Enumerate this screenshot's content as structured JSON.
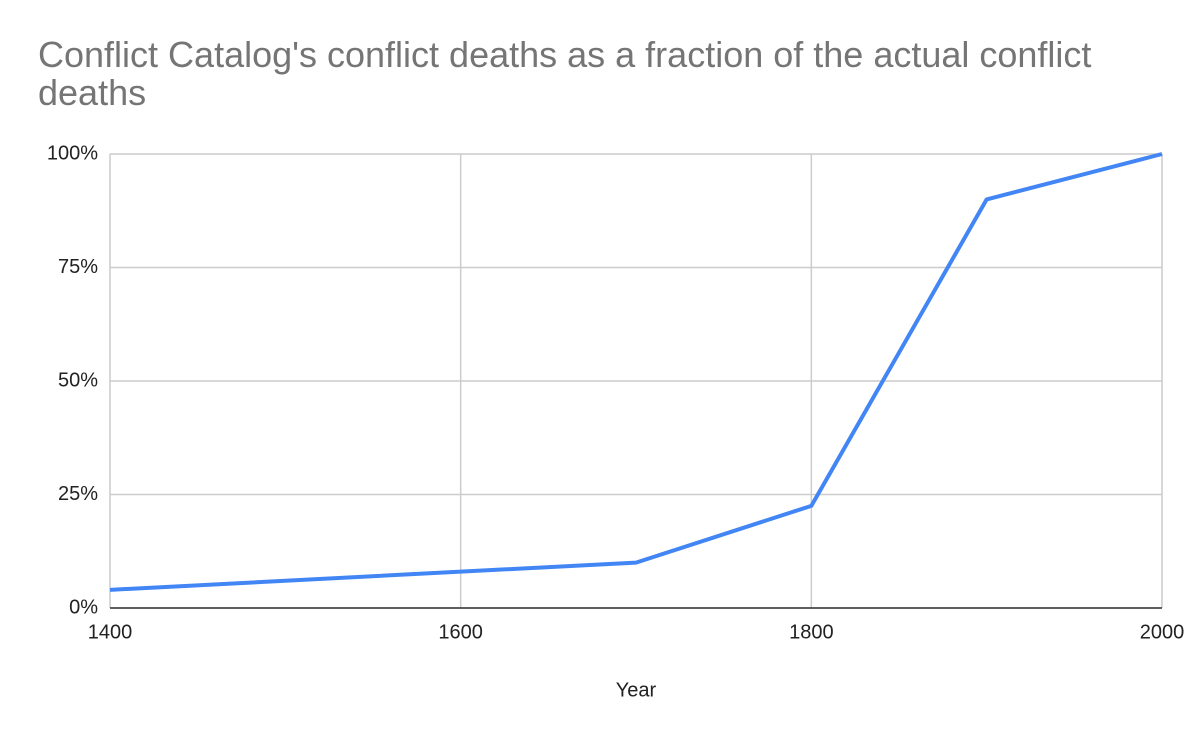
{
  "chart_data": {
    "type": "line",
    "title": "Conflict Catalog's conflict deaths as a fraction of the actual conflict deaths",
    "xlabel": "Year",
    "x": [
      1400,
      1600,
      1700,
      1800,
      1900,
      2000
    ],
    "series": [
      {
        "name": "Conflict Catalog's conflict deaths as a fraction of the actual conflict deaths",
        "color": "#4285f4",
        "values": [
          4,
          8,
          10,
          22.5,
          90,
          100
        ]
      }
    ],
    "xlim": [
      1400,
      2000
    ],
    "xticks": [
      1400,
      1600,
      1800,
      2000
    ],
    "ylim": [
      0,
      100
    ],
    "yticks": [
      {
        "value": 0,
        "label": "0%"
      },
      {
        "value": 25,
        "label": "25%"
      },
      {
        "value": 50,
        "label": "50%"
      },
      {
        "value": 75,
        "label": "75%"
      },
      {
        "value": 100,
        "label": "100%"
      }
    ],
    "grid": true
  }
}
